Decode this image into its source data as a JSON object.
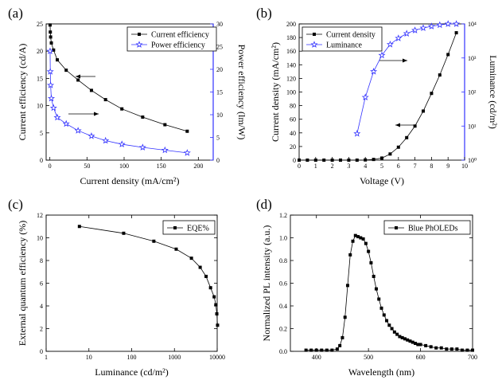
{
  "chart_data": [
    {
      "panel": "(a)",
      "type": "line",
      "xlabel": "Current density (mA/cm²)",
      "ylabel": "Current efficiency (cd/A)",
      "y2label": "Power efficiency (lm/W)",
      "xlim": [
        -5,
        220
      ],
      "ylim": [
        0,
        25
      ],
      "y2lim": [
        0,
        30
      ],
      "xticks": [
        "0",
        "50",
        "100",
        "150",
        "200"
      ],
      "yticks": [
        "0",
        "5",
        "10",
        "15",
        "20",
        "25"
      ],
      "y2ticks": [
        "0",
        "5",
        "10",
        "15",
        "20",
        "25",
        "30"
      ],
      "legend_position": "top-right",
      "series": [
        {
          "name": "Current efficiency",
          "axis": "left",
          "marker": "square",
          "color": "#000000",
          "x": [
            0.3,
            0.6,
            1,
            2,
            5,
            10,
            22,
            38,
            56,
            75,
            97,
            125,
            155,
            185
          ],
          "y": [
            24.8,
            23.5,
            22.6,
            21.5,
            20.2,
            18.4,
            16.5,
            14.7,
            12.8,
            11.1,
            9.4,
            7.9,
            6.5,
            5.3
          ]
        },
        {
          "name": "Power efficiency",
          "axis": "right",
          "marker": "star",
          "color": "#3333ff",
          "x": [
            0.3,
            0.6,
            1,
            2,
            5,
            10,
            22,
            38,
            56,
            75,
            97,
            125,
            155,
            185
          ],
          "y": [
            24,
            19.5,
            16.5,
            13.6,
            11.5,
            9.4,
            8,
            6.5,
            5.3,
            4.3,
            3.5,
            2.8,
            2.2,
            1.6
          ]
        }
      ],
      "color_right_axis": "#3333ff"
    },
    {
      "panel": "(b)",
      "type": "line",
      "xlabel": "Voltage (V)",
      "ylabel": "Current density (mA/cm²)",
      "y2label": "Luminance (cd/m²)",
      "xlim": [
        0,
        10
      ],
      "ylim": [
        0,
        200
      ],
      "y2lim": [
        1,
        10000
      ],
      "y2scale": "log",
      "xticks": [
        "0",
        "1",
        "2",
        "3",
        "4",
        "5",
        "6",
        "7",
        "8",
        "9",
        "10"
      ],
      "yticks": [
        "0",
        "20",
        "40",
        "60",
        "80",
        "100",
        "120",
        "140",
        "160",
        "180",
        "200"
      ],
      "y2ticks": [
        "10⁰",
        "10¹",
        "10²",
        "10³",
        "10⁴"
      ],
      "legend_position": "top-left",
      "series": [
        {
          "name": "Current density",
          "axis": "left",
          "marker": "square",
          "color": "#000000",
          "x": [
            0,
            0.5,
            1,
            1.5,
            2,
            2.5,
            3,
            3.5,
            4,
            4.5,
            5,
            5.5,
            6,
            6.5,
            7,
            7.5,
            8,
            8.5,
            9,
            9.5
          ],
          "y": [
            0,
            0,
            0,
            0,
            0,
            0,
            0,
            0,
            0.3,
            1,
            3,
            9,
            19,
            33,
            50,
            72,
            98,
            125,
            155,
            187
          ]
        },
        {
          "name": "Luminance",
          "axis": "right",
          "marker": "star",
          "color": "#3333ff",
          "x": [
            3.5,
            4,
            4.5,
            5,
            5.5,
            6,
            6.5,
            7,
            7.5,
            8,
            8.5,
            9,
            9.5
          ],
          "y": [
            6,
            70,
            400,
            1200,
            2500,
            3800,
            5200,
            6500,
            7600,
            8500,
            9300,
            10000,
            10000
          ]
        }
      ],
      "color_right_axis": "#3333ff"
    },
    {
      "panel": "(c)",
      "type": "line",
      "xlabel": "Luminance (cd/m²)",
      "ylabel": "External quantum efficiency (%)",
      "xlim": [
        1,
        10000
      ],
      "xscale": "log",
      "ylim": [
        0,
        12
      ],
      "xticks": [
        "1",
        "10",
        "100",
        "1000",
        "10000"
      ],
      "yticks": [
        "0",
        "2",
        "4",
        "6",
        "8",
        "10",
        "12"
      ],
      "legend_position": "top-right",
      "series": [
        {
          "name": "EQE%",
          "marker": "square",
          "color": "#000000",
          "x": [
            6,
            65,
            330,
            1100,
            2500,
            4000,
            5500,
            7000,
            8500,
            9300,
            9800,
            10200
          ],
          "y": [
            11,
            10.4,
            9.7,
            9,
            8.2,
            7.4,
            6.6,
            5.6,
            4.8,
            4.1,
            3.3,
            2.3
          ]
        }
      ]
    },
    {
      "panel": "(d)",
      "type": "line",
      "xlabel": "Wavelength (nm)",
      "ylabel": "Normalized PL intensity (a.u.)",
      "xlim": [
        350,
        700
      ],
      "ylim": [
        0,
        1.2
      ],
      "xticks": [
        "400",
        "500",
        "600",
        "700"
      ],
      "yticks": [
        "0.0",
        "0.2",
        "0.4",
        "0.6",
        "0.8",
        "1.0",
        "1.2"
      ],
      "legend_position": "top-right",
      "series": [
        {
          "name": "Blue PhOLEDs",
          "marker": "square",
          "color": "#000000",
          "x": [
            380,
            390,
            400,
            410,
            420,
            430,
            440,
            445,
            450,
            455,
            460,
            465,
            470,
            475,
            480,
            485,
            490,
            495,
            500,
            505,
            510,
            515,
            520,
            525,
            530,
            535,
            540,
            545,
            550,
            555,
            560,
            565,
            570,
            575,
            580,
            585,
            590,
            595,
            600,
            610,
            620,
            630,
            640,
            650,
            660,
            670,
            680,
            690,
            700
          ],
          "y": [
            0.01,
            0.01,
            0.01,
            0.01,
            0.01,
            0.01,
            0.02,
            0.05,
            0.12,
            0.3,
            0.58,
            0.85,
            0.97,
            1.02,
            1.01,
            1.0,
            0.99,
            0.95,
            0.88,
            0.78,
            0.66,
            0.55,
            0.46,
            0.38,
            0.32,
            0.27,
            0.23,
            0.2,
            0.17,
            0.15,
            0.13,
            0.12,
            0.11,
            0.1,
            0.09,
            0.08,
            0.07,
            0.06,
            0.06,
            0.05,
            0.04,
            0.03,
            0.03,
            0.02,
            0.02,
            0.02,
            0.01,
            0.01,
            0.01
          ]
        }
      ]
    }
  ]
}
